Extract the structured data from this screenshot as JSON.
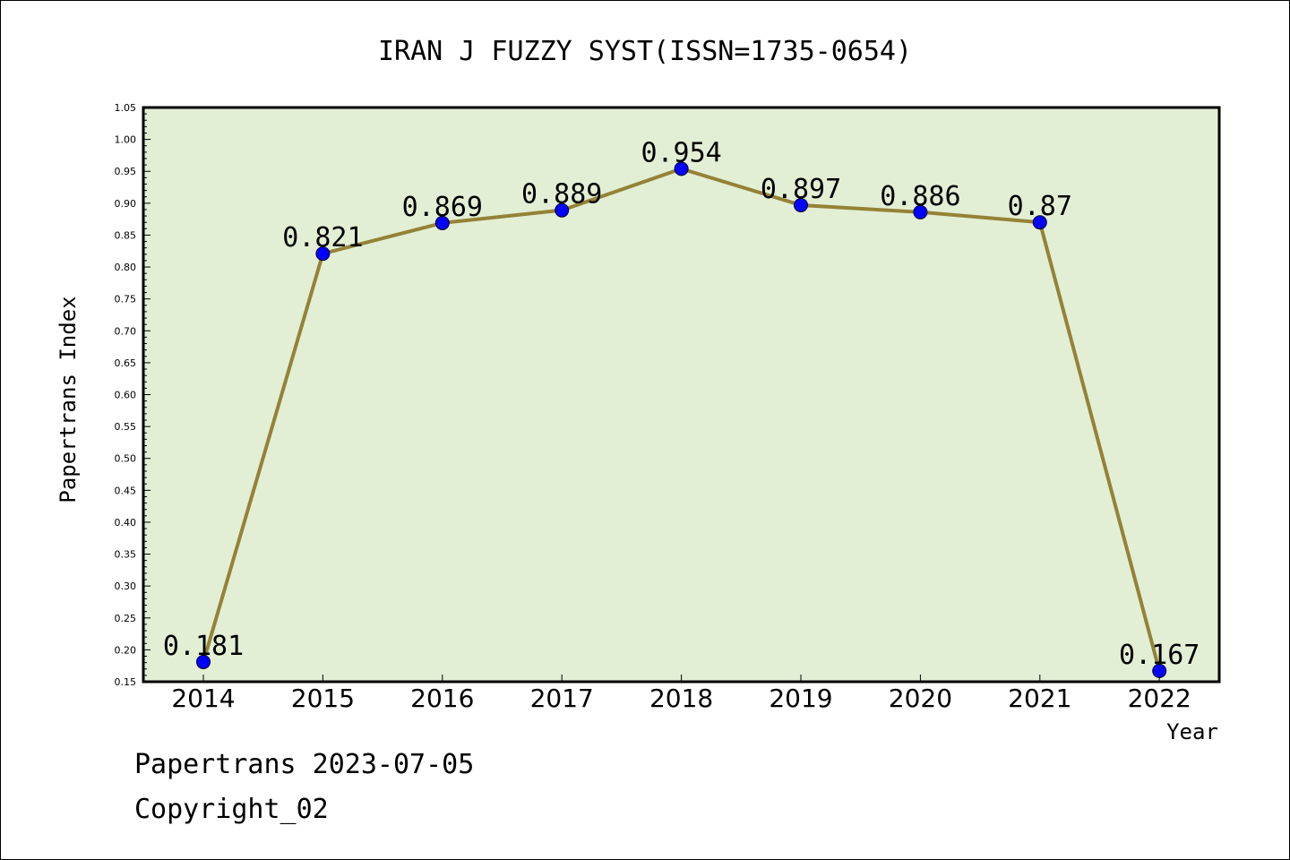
{
  "chart_data": {
    "type": "line",
    "title": "IRAN J FUZZY SYST(ISSN=1735-0654)",
    "xlabel": "Year",
    "ylabel": "Papertrans Index",
    "categories": [
      "2014",
      "2015",
      "2016",
      "2017",
      "2018",
      "2019",
      "2020",
      "2021",
      "2022"
    ],
    "series": [
      {
        "values": [
          0.181,
          0.821,
          0.869,
          0.889,
          0.954,
          0.897,
          0.886,
          0.87,
          0.167
        ]
      }
    ],
    "data_labels": [
      "0.181",
      "0.821",
      "0.869",
      "0.889",
      "0.954",
      "0.897",
      "0.886",
      "0.87",
      "0.167"
    ],
    "ylim": [
      0.15,
      1.05
    ],
    "yticks": [
      "0.15",
      "0.20",
      "0.25",
      "0.30",
      "0.35",
      "0.40",
      "0.45",
      "0.50",
      "0.55",
      "0.60",
      "0.65",
      "0.70",
      "0.75",
      "0.80",
      "0.85",
      "0.90",
      "0.95",
      "1.00",
      "1.05"
    ],
    "grid": false,
    "colors": {
      "plot_background": "#e2efd5",
      "line": "#948236",
      "marker": "#0000ff"
    }
  },
  "footer": {
    "line1": "Papertrans 2023-07-05",
    "line2": "Copyright_02"
  }
}
